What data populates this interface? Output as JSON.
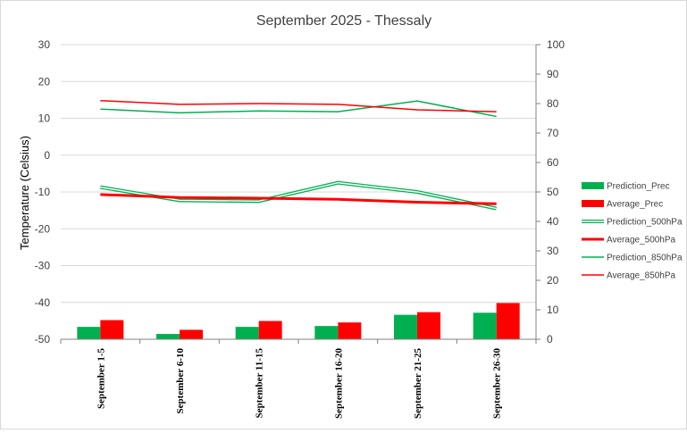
{
  "chart_data": {
    "type": "bar",
    "title": "September 2025 - Thessaly",
    "ylabel": "Temperature (Celsius)",
    "y2label": "",
    "xlabel": "",
    "categories": [
      "September 1-5",
      "September 6-10",
      "September 11-15",
      "September 16-20",
      "September 21-25",
      "September 26-30"
    ],
    "ylim": [
      -50,
      30
    ],
    "yticks": [
      30,
      20,
      10,
      0,
      -10,
      -20,
      -30,
      -40,
      -50
    ],
    "y2lim": [
      0,
      100
    ],
    "y2ticks": [
      0,
      10,
      20,
      30,
      40,
      50,
      60,
      70,
      80,
      90,
      100
    ],
    "grid": true,
    "legend_position": "right",
    "bar_series": [
      {
        "name": "Prediction_Prec",
        "color": "#00b050",
        "axis": "secondary",
        "values": [
          4.2,
          1.8,
          4.2,
          4.5,
          8.3,
          9.0
        ]
      },
      {
        "name": "Average_Prec",
        "color": "#ff0000",
        "axis": "secondary",
        "values": [
          6.5,
          3.2,
          6.2,
          5.7,
          9.2,
          12.3
        ]
      }
    ],
    "line_series": [
      {
        "name": "Prediction_500hPa",
        "color": "#00b050",
        "style": "double",
        "axis": "primary",
        "values": [
          -8.7,
          -12.3,
          -12.5,
          -7.5,
          -10.0,
          -14.5
        ]
      },
      {
        "name": "Average_500hPa",
        "color": "#ff0000",
        "style": "thick",
        "axis": "primary",
        "values": [
          -10.7,
          -11.5,
          -11.7,
          -12.0,
          -12.8,
          -13.2
        ]
      },
      {
        "name": "Prediction_850hPa",
        "color": "#00b050",
        "style": "thin",
        "axis": "primary",
        "values": [
          12.5,
          11.5,
          12.0,
          11.8,
          14.7,
          10.5
        ]
      },
      {
        "name": "Average_850hPa",
        "color": "#ff0000",
        "style": "thin",
        "axis": "primary",
        "values": [
          14.8,
          13.8,
          14.0,
          13.8,
          12.3,
          11.8
        ]
      }
    ],
    "legend_order": [
      "Prediction_Prec",
      "Average_Prec",
      "Prediction_500hPa",
      "Average_500hPa",
      "Prediction_850hPa",
      "Average_850hPa"
    ]
  }
}
